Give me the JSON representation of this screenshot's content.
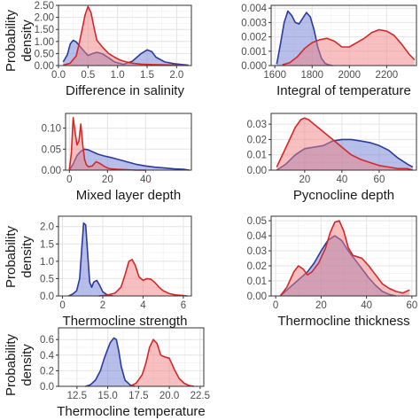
{
  "ylabel_line1": "Probability",
  "ylabel_line2": "density",
  "colors": {
    "blue": "#2b3c9b",
    "red": "#d62728",
    "blueFill": "#6f7ed6",
    "redFill": "#f08080",
    "grid": "#e4e4e4"
  },
  "chart_data": [
    {
      "type": "area",
      "xlabel": "Difference in salinity",
      "xlim": [
        0,
        2.25
      ],
      "ylim": [
        0,
        2.5
      ],
      "xticks": [
        0.0,
        0.5,
        1.0,
        1.5,
        2.0
      ],
      "xtick_labels": [
        "0.0",
        "0.5",
        "1.0",
        "1.5",
        "2.0"
      ],
      "yticks": [
        0,
        0.5,
        1,
        1.5,
        2,
        2.5
      ],
      "ytick_labels": [
        "0.00",
        "0.50",
        "1.00",
        "1.50",
        "2.00",
        "2.50"
      ],
      "series": [
        {
          "color": "blue",
          "x": [
            0.08,
            0.15,
            0.2,
            0.25,
            0.3,
            0.38,
            0.45,
            0.5,
            0.58,
            0.65,
            0.75,
            0.85,
            0.95,
            1.1,
            1.25,
            1.4,
            1.5,
            1.58,
            1.65,
            1.8,
            1.95,
            2.1,
            2.2
          ],
          "y": [
            0.15,
            0.45,
            0.9,
            1.05,
            0.98,
            0.75,
            0.55,
            0.42,
            0.5,
            0.55,
            0.48,
            0.32,
            0.15,
            0.05,
            0.18,
            0.5,
            0.65,
            0.58,
            0.35,
            0.15,
            0.08,
            0.04,
            0.02
          ]
        },
        {
          "color": "red",
          "x": [
            0.08,
            0.2,
            0.3,
            0.35,
            0.4,
            0.45,
            0.5,
            0.55,
            0.6,
            0.65,
            0.75,
            0.85,
            0.95,
            1.05,
            1.15,
            1.25,
            1.4,
            1.6,
            1.8,
            2.0,
            2.1
          ],
          "y": [
            0.02,
            0.1,
            0.4,
            0.9,
            1.5,
            2.1,
            2.45,
            2.2,
            1.6,
            1.05,
            0.75,
            0.5,
            0.35,
            0.22,
            0.15,
            0.1,
            0.06,
            0.04,
            0.03,
            0.02,
            0.02
          ]
        }
      ]
    },
    {
      "type": "area",
      "xlabel": "Integral of temperature",
      "xlim": [
        1580,
        2360
      ],
      "ylim": [
        0,
        0.0042
      ],
      "xticks": [
        1600,
        1800,
        2000,
        2200
      ],
      "xtick_labels": [
        "1600",
        "1800",
        "2000",
        "2200"
      ],
      "yticks": [
        0,
        0.001,
        0.002,
        0.003,
        0.004
      ],
      "ytick_labels": [
        "0.000",
        "0.001",
        "0.002",
        "0.003",
        "0.004"
      ],
      "series": [
        {
          "color": "blue",
          "x": [
            1610,
            1630,
            1650,
            1670,
            1690,
            1710,
            1730,
            1750,
            1770,
            1790,
            1810,
            1830,
            1850,
            1870,
            1890,
            1910
          ],
          "y": [
            0.0001,
            0.0015,
            0.003,
            0.0038,
            0.0035,
            0.003,
            0.0029,
            0.0033,
            0.0037,
            0.0034,
            0.0025,
            0.0013,
            0.0005,
            0.00015,
            5e-05,
            0.0
          ]
        },
        {
          "color": "red",
          "x": [
            1640,
            1680,
            1720,
            1760,
            1800,
            1840,
            1880,
            1920,
            1960,
            2000,
            2040,
            2080,
            2120,
            2160,
            2200,
            2240,
            2280,
            2320,
            2350
          ],
          "y": [
            5e-05,
            0.0002,
            0.0006,
            0.0012,
            0.0016,
            0.0018,
            0.0019,
            0.0017,
            0.0013,
            0.0013,
            0.0016,
            0.0019,
            0.0023,
            0.0025,
            0.0024,
            0.0021,
            0.0015,
            0.0008,
            0.0004
          ]
        }
      ]
    },
    {
      "type": "area",
      "xlabel": "Mixed layer depth",
      "xlim": [
        -2,
        64
      ],
      "ylim": [
        0,
        0.135
      ],
      "xticks": [
        0,
        20,
        40
      ],
      "xtick_labels": [
        "0",
        "20",
        "40"
      ],
      "yticks": [
        0,
        0.05,
        0.1
      ],
      "ytick_labels": [
        "0.00",
        "0.05",
        "0.10"
      ],
      "series": [
        {
          "color": "blue",
          "x": [
            0,
            2,
            4,
            6,
            8,
            10,
            12,
            15,
            18,
            22,
            26,
            30,
            35,
            40,
            45,
            50,
            55,
            60,
            63
          ],
          "y": [
            0.0,
            0.015,
            0.035,
            0.045,
            0.05,
            0.048,
            0.044,
            0.038,
            0.034,
            0.03,
            0.025,
            0.02,
            0.014,
            0.01,
            0.007,
            0.005,
            0.003,
            0.002,
            0.0
          ]
        },
        {
          "color": "red",
          "x": [
            0,
            1,
            2,
            3,
            4,
            5,
            6,
            7,
            8,
            9,
            10,
            12,
            14,
            16,
            18,
            20,
            22,
            25,
            30,
            35,
            40
          ],
          "y": [
            0.002,
            0.04,
            0.125,
            0.09,
            0.06,
            0.07,
            0.11,
            0.06,
            0.025,
            0.012,
            0.008,
            0.01,
            0.02,
            0.016,
            0.01,
            0.005,
            0.003,
            0.002,
            0.001,
            0.0,
            0.0
          ]
        }
      ]
    },
    {
      "type": "area",
      "xlabel": "Pycnocline depth",
      "xlim": [
        2,
        80
      ],
      "ylim": [
        0,
        0.037
      ],
      "xticks": [
        20,
        40,
        60
      ],
      "xtick_labels": [
        "20",
        "40",
        "60"
      ],
      "yticks": [
        0,
        0.01,
        0.02,
        0.03
      ],
      "ytick_labels": [
        "0.00",
        "0.01",
        "0.02",
        "0.03"
      ],
      "series": [
        {
          "color": "blue",
          "x": [
            5,
            10,
            15,
            20,
            25,
            30,
            35,
            40,
            45,
            50,
            55,
            60,
            65,
            70,
            75,
            78
          ],
          "y": [
            0.0,
            0.004,
            0.01,
            0.014,
            0.015,
            0.016,
            0.019,
            0.02,
            0.02,
            0.019,
            0.018,
            0.016,
            0.013,
            0.008,
            0.004,
            0.002
          ]
        },
        {
          "color": "red",
          "x": [
            5,
            10,
            15,
            18,
            20,
            22,
            25,
            30,
            35,
            40,
            45,
            50,
            55,
            60,
            65,
            70,
            75,
            78
          ],
          "y": [
            0.002,
            0.015,
            0.028,
            0.033,
            0.034,
            0.033,
            0.03,
            0.025,
            0.02,
            0.015,
            0.01,
            0.007,
            0.005,
            0.003,
            0.002,
            0.001,
            0.001,
            0.0
          ]
        }
      ]
    },
    {
      "type": "area",
      "xlabel": "Thermocline strength",
      "xlim": [
        -0.2,
        6.4
      ],
      "ylim": [
        0,
        2.3
      ],
      "xticks": [
        0,
        2,
        4,
        6
      ],
      "xtick_labels": [
        "0",
        "2",
        "4",
        "6"
      ],
      "yticks": [
        0,
        0.5,
        1.0,
        1.5,
        2.0
      ],
      "ytick_labels": [
        "0.0",
        "0.5",
        "1.0",
        "1.5",
        "2.0"
      ],
      "series": [
        {
          "color": "blue",
          "x": [
            0.3,
            0.5,
            0.7,
            0.85,
            0.95,
            1.05,
            1.15,
            1.25,
            1.35,
            1.45,
            1.55,
            1.7,
            1.85,
            2.0,
            2.2,
            2.5
          ],
          "y": [
            0.0,
            0.05,
            0.15,
            0.5,
            1.3,
            2.1,
            2.05,
            1.2,
            0.4,
            0.25,
            0.4,
            0.45,
            0.3,
            0.12,
            0.04,
            0.0
          ]
        },
        {
          "color": "red",
          "x": [
            1.8,
            2.2,
            2.6,
            2.9,
            3.1,
            3.3,
            3.45,
            3.6,
            3.8,
            4.0,
            4.2,
            4.4,
            4.6,
            4.8,
            5.0,
            5.3,
            5.6,
            6.0,
            6.2
          ],
          "y": [
            0.0,
            0.02,
            0.08,
            0.25,
            0.6,
            1.0,
            1.05,
            0.9,
            0.55,
            0.45,
            0.5,
            0.48,
            0.38,
            0.25,
            0.15,
            0.07,
            0.03,
            0.01,
            0.0
          ]
        }
      ]
    },
    {
      "type": "area",
      "xlabel": "Thermocline thickness",
      "xlim": [
        -2,
        62
      ],
      "ylim": [
        0,
        0.053
      ],
      "xticks": [
        0,
        20,
        40,
        60
      ],
      "xtick_labels": [
        "0",
        "20",
        "40",
        "60"
      ],
      "yticks": [
        0,
        0.01,
        0.02,
        0.03,
        0.04,
        0.05
      ],
      "ytick_labels": [
        "0.00",
        "0.01",
        "0.02",
        "0.03",
        "0.04",
        "0.05"
      ],
      "series": [
        {
          "color": "blue",
          "x": [
            2,
            5,
            8,
            11,
            14,
            17,
            20,
            23,
            26,
            29,
            32,
            35,
            38,
            41,
            44,
            47,
            50,
            53
          ],
          "y": [
            0.0,
            0.004,
            0.008,
            0.012,
            0.016,
            0.022,
            0.03,
            0.037,
            0.04,
            0.037,
            0.03,
            0.024,
            0.018,
            0.012,
            0.007,
            0.003,
            0.001,
            0.0
          ]
        },
        {
          "color": "red",
          "x": [
            2,
            5,
            8,
            10,
            12,
            14,
            16,
            19,
            22,
            24,
            26,
            28,
            30,
            32,
            34,
            36,
            38,
            41,
            44,
            47,
            50,
            53,
            56,
            59
          ],
          "y": [
            0.0,
            0.006,
            0.016,
            0.02,
            0.018,
            0.014,
            0.016,
            0.022,
            0.032,
            0.042,
            0.049,
            0.05,
            0.043,
            0.032,
            0.027,
            0.026,
            0.025,
            0.02,
            0.014,
            0.008,
            0.005,
            0.003,
            0.002,
            0.004
          ]
        }
      ]
    },
    {
      "type": "area",
      "xlabel": "Thermocline temperature",
      "xlim": [
        11.0,
        22.8
      ],
      "ylim": [
        0,
        0.75
      ],
      "xticks": [
        12.5,
        15.0,
        17.5,
        20.0,
        22.5
      ],
      "xtick_labels": [
        "12.5",
        "15.0",
        "17.5",
        "20.0",
        "22.5"
      ],
      "yticks": [
        0,
        0.2,
        0.4,
        0.6
      ],
      "ytick_labels": [
        "0.0",
        "0.2",
        "0.4",
        "0.6"
      ],
      "series": [
        {
          "color": "blue",
          "x": [
            13.2,
            13.6,
            14.0,
            14.4,
            14.7,
            15.0,
            15.2,
            15.5,
            15.7,
            15.9,
            16.1,
            16.4,
            16.8,
            17.2
          ],
          "y": [
            0.0,
            0.02,
            0.08,
            0.2,
            0.35,
            0.48,
            0.56,
            0.62,
            0.6,
            0.45,
            0.25,
            0.08,
            0.02,
            0.0
          ]
        },
        {
          "color": "red",
          "x": [
            16.8,
            17.3,
            17.8,
            18.1,
            18.4,
            18.7,
            19.0,
            19.3,
            19.6,
            20.0,
            20.4,
            20.8,
            21.2,
            21.6,
            22.0
          ],
          "y": [
            0.0,
            0.04,
            0.15,
            0.3,
            0.5,
            0.6,
            0.55,
            0.4,
            0.38,
            0.36,
            0.22,
            0.1,
            0.04,
            0.01,
            0.0
          ]
        }
      ]
    }
  ]
}
